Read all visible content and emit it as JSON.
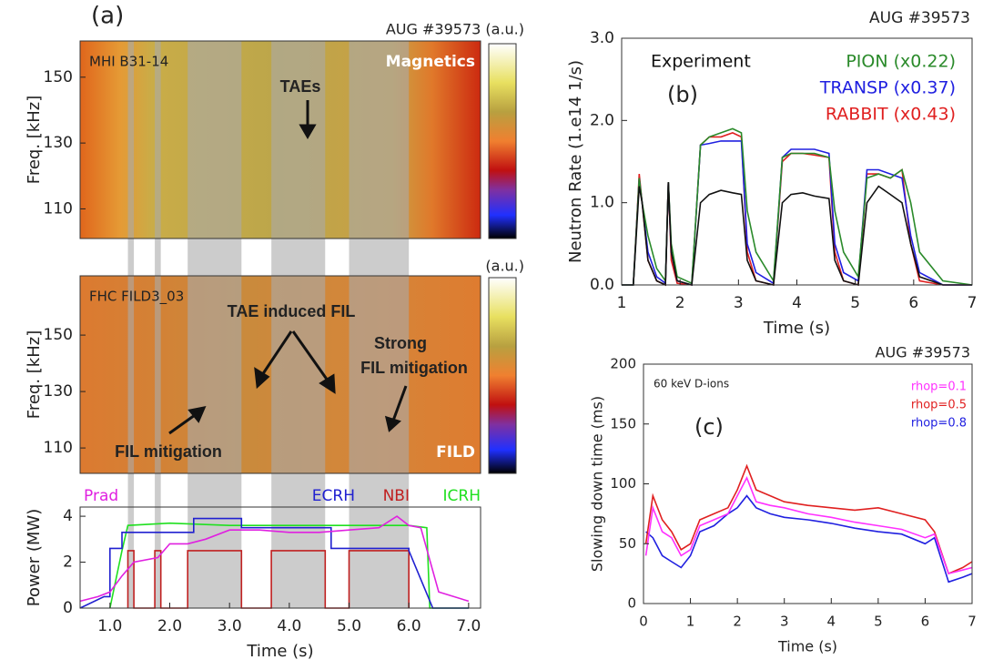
{
  "chart_data": [
    {
      "type": "spectrogram",
      "panel_label": "(a)",
      "title": "AUG #39573 (a.u.)",
      "signal": "MHI B31-14",
      "label": "Magnetics",
      "annotations": [
        "TAEs"
      ],
      "ylabel": "Freq. [kHz]",
      "xlim": [
        0.5,
        7.2
      ],
      "ylim": [
        101,
        161
      ],
      "yticks": [
        110,
        130,
        150
      ]
    },
    {
      "type": "spectrogram",
      "title": "(a.u.)",
      "signal": "FHC FILD3_03",
      "label": "FILD",
      "annotations": [
        "TAE induced FIL",
        "Strong",
        "FIL mitigation",
        "FIL mitigation"
      ],
      "ylabel": "Freq. [kHz]",
      "xlim": [
        0.5,
        7.2
      ],
      "ylim": [
        101,
        171
      ],
      "yticks": [
        110,
        130,
        150
      ]
    },
    {
      "type": "line",
      "xlabel": "Time (s)",
      "ylabel": "Power (MW)",
      "xlim": [
        0.5,
        7.2
      ],
      "ylim": [
        0,
        4.4
      ],
      "xticks": [
        {
          "value": 1,
          "label": "1.0"
        },
        {
          "value": 2,
          "label": "2.0"
        },
        {
          "value": 3,
          "label": "3.0"
        },
        {
          "value": 4,
          "label": "4.0"
        },
        {
          "value": 5,
          "label": "5.0"
        },
        {
          "value": 6,
          "label": "6.0"
        },
        {
          "value": 7,
          "label": "7.0"
        }
      ],
      "yticks": [
        0,
        2,
        4
      ],
      "shaded_intervals": [
        [
          1.3,
          1.4
        ],
        [
          1.75,
          1.85
        ],
        [
          2.3,
          3.2
        ],
        [
          3.7,
          4.6
        ],
        [
          5.0,
          6.0
        ]
      ],
      "series": [
        {
          "name": "Prad",
          "color": "#e020e0",
          "x": [
            0.5,
            0.8,
            1.0,
            1.2,
            1.4,
            1.8,
            2.0,
            2.3,
            2.6,
            3.0,
            3.5,
            4.0,
            4.5,
            5.0,
            5.5,
            5.8,
            6.0,
            6.2,
            6.5,
            7.0
          ],
          "values": [
            0.3,
            0.5,
            0.7,
            1.4,
            2.0,
            2.2,
            2.8,
            2.8,
            3.0,
            3.4,
            3.4,
            3.3,
            3.3,
            3.4,
            3.5,
            4.0,
            3.6,
            3.5,
            0.7,
            0.3
          ]
        },
        {
          "name": "ECRH",
          "color": "#2020d0",
          "x": [
            0.5,
            0.9,
            1.0,
            1.0,
            1.2,
            1.2,
            2.4,
            2.4,
            3.2,
            3.2,
            4.7,
            4.7,
            6.0,
            6.0,
            6.4,
            7.0
          ],
          "values": [
            0,
            0.5,
            0.5,
            2.6,
            2.6,
            3.3,
            3.3,
            3.9,
            3.9,
            3.5,
            3.5,
            2.6,
            2.6,
            2.5,
            0,
            0
          ]
        },
        {
          "name": "NBI",
          "color": "#c02020",
          "x": [
            1.3,
            1.3,
            1.4,
            1.4,
            1.75,
            1.75,
            1.85,
            1.85,
            2.3,
            2.3,
            3.2,
            3.2,
            3.7,
            3.7,
            4.6,
            4.6,
            5.0,
            5.0,
            6.0,
            6.0
          ],
          "values": [
            0,
            2.5,
            2.5,
            0,
            0,
            2.5,
            2.5,
            0,
            0,
            2.5,
            2.5,
            0,
            0,
            2.5,
            2.5,
            0,
            0,
            2.5,
            2.5,
            0
          ]
        },
        {
          "name": "ICRH",
          "color": "#20e020",
          "x": [
            1.0,
            1.2,
            1.3,
            2.0,
            3.0,
            4.0,
            5.0,
            6.0,
            6.3,
            6.35,
            7.0
          ],
          "values": [
            0,
            2.5,
            3.6,
            3.7,
            3.6,
            3.6,
            3.6,
            3.6,
            3.5,
            0,
            0
          ]
        }
      ]
    },
    {
      "type": "line",
      "panel_label": "(b)",
      "title": "AUG #39573",
      "xlabel": "Time (s)",
      "ylabel": "Neutron Rate (1.e14 1/s)",
      "xlim": [
        1,
        7
      ],
      "ylim": [
        0,
        3
      ],
      "xticks": [
        1,
        2,
        3,
        4,
        5,
        6,
        7
      ],
      "yticks": [
        {
          "value": 0,
          "label": "0.0"
        },
        {
          "value": 1,
          "label": "1.0"
        },
        {
          "value": 2,
          "label": "2.0"
        },
        {
          "value": 3,
          "label": "3.0"
        }
      ],
      "x": [
        1.0,
        1.2,
        1.3,
        1.35,
        1.45,
        1.6,
        1.75,
        1.8,
        1.85,
        1.95,
        2.2,
        2.35,
        2.5,
        2.7,
        2.9,
        3.05,
        3.15,
        3.3,
        3.6,
        3.75,
        3.9,
        4.1,
        4.3,
        4.55,
        4.65,
        4.8,
        5.05,
        5.2,
        5.4,
        5.6,
        5.8,
        5.95,
        6.1,
        6.5,
        7.0
      ],
      "series": [
        {
          "name": "Experiment",
          "color": "#111111",
          "values": [
            0,
            0,
            1.2,
            1.0,
            0.3,
            0.05,
            0,
            1.25,
            0.4,
            0.05,
            0,
            1.0,
            1.1,
            1.15,
            1.12,
            1.1,
            0.3,
            0.05,
            0,
            1.0,
            1.1,
            1.12,
            1.08,
            1.05,
            0.3,
            0.05,
            0,
            1.0,
            1.2,
            1.1,
            1.0,
            0.5,
            0.1,
            0,
            0
          ]
        },
        {
          "name": "PION (x0.22)",
          "color": "#2a8a2a",
          "values": [
            0,
            0,
            1.3,
            1.0,
            0.6,
            0.2,
            0.05,
            1.25,
            0.5,
            0.1,
            0.02,
            1.7,
            1.8,
            1.85,
            1.9,
            1.85,
            0.9,
            0.4,
            0.05,
            1.55,
            1.6,
            1.6,
            1.6,
            1.55,
            0.9,
            0.4,
            0.1,
            1.3,
            1.35,
            1.3,
            1.4,
            1.0,
            0.4,
            0.05,
            0
          ]
        },
        {
          "name": "TRANSP (x0.37)",
          "color": "#2020e0",
          "values": [
            0,
            0,
            1.3,
            1.0,
            0.4,
            0.1,
            0.02,
            1.25,
            0.4,
            0.05,
            0,
            1.7,
            1.72,
            1.75,
            1.75,
            1.75,
            0.5,
            0.15,
            0.02,
            1.55,
            1.65,
            1.65,
            1.65,
            1.6,
            0.5,
            0.15,
            0.05,
            1.4,
            1.4,
            1.35,
            1.3,
            0.6,
            0.15,
            0,
            0
          ]
        },
        {
          "name": "RABBIT (x0.43)",
          "color": "#e02020",
          "values": [
            0,
            0,
            1.35,
            1.0,
            0.3,
            0.05,
            0,
            1.25,
            0.3,
            0.02,
            0,
            1.7,
            1.8,
            1.8,
            1.85,
            1.8,
            0.4,
            0.05,
            0,
            1.5,
            1.6,
            1.6,
            1.58,
            1.55,
            0.4,
            0.05,
            0,
            1.35,
            1.35,
            1.3,
            1.4,
            0.5,
            0.05,
            0,
            0
          ]
        }
      ]
    },
    {
      "type": "line",
      "panel_label": "(c)",
      "title": "AUG #39573",
      "annotation": "60 keV D-ions",
      "xlabel": "Time (s)",
      "ylabel": "Slowing down time (ms)",
      "xlim": [
        0,
        7
      ],
      "ylim": [
        0,
        200
      ],
      "xticks": [
        0,
        1,
        2,
        3,
        4,
        5,
        6,
        7
      ],
      "yticks": [
        0,
        50,
        100,
        150,
        200
      ],
      "x": [
        0.05,
        0.2,
        0.4,
        0.6,
        0.8,
        1.0,
        1.2,
        1.5,
        1.8,
        2.0,
        2.2,
        2.4,
        2.7,
        3.0,
        3.5,
        4.0,
        4.5,
        5.0,
        5.5,
        6.0,
        6.2,
        6.5,
        6.8,
        7.0
      ],
      "series": [
        {
          "name": "rhop=0.1",
          "color": "#ff30ff",
          "values": [
            40,
            80,
            60,
            55,
            40,
            45,
            65,
            70,
            75,
            90,
            105,
            85,
            82,
            80,
            75,
            72,
            68,
            65,
            62,
            55,
            58,
            25,
            28,
            30
          ]
        },
        {
          "name": "rhop=0.5",
          "color": "#e02020",
          "values": [
            50,
            90,
            70,
            60,
            45,
            50,
            70,
            75,
            80,
            95,
            115,
            95,
            90,
            85,
            82,
            80,
            78,
            80,
            75,
            70,
            60,
            25,
            30,
            35
          ]
        },
        {
          "name": "rhop=0.8",
          "color": "#2020e0",
          "values": [
            60,
            55,
            40,
            35,
            30,
            40,
            60,
            65,
            75,
            80,
            90,
            80,
            75,
            72,
            70,
            67,
            63,
            60,
            58,
            50,
            55,
            18,
            22,
            25
          ]
        }
      ]
    }
  ]
}
